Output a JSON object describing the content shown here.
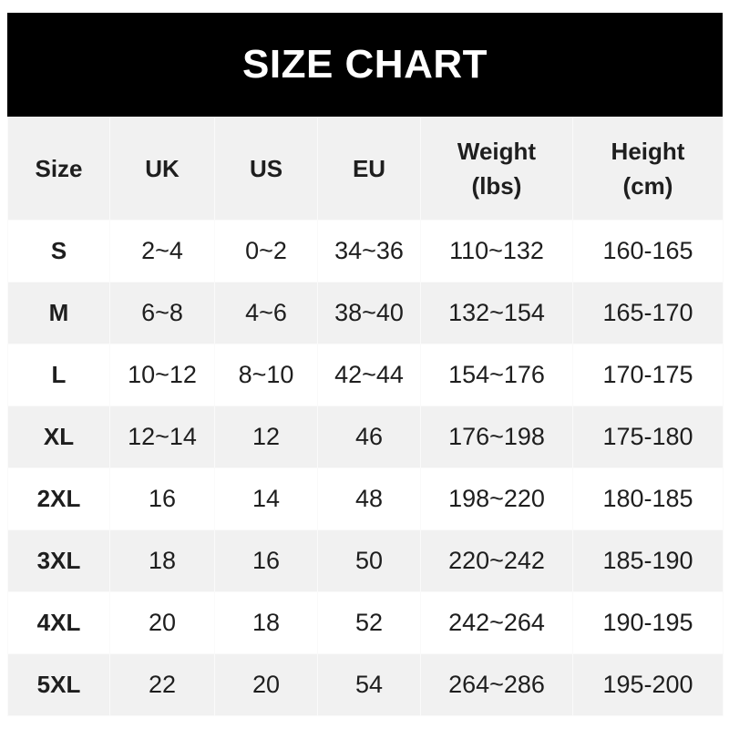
{
  "title": "SIZE CHART",
  "headers": [
    {
      "line1": "Size",
      "line2": ""
    },
    {
      "line1": "UK",
      "line2": ""
    },
    {
      "line1": "US",
      "line2": ""
    },
    {
      "line1": "EU",
      "line2": ""
    },
    {
      "line1": "Weight",
      "line2": "(lbs)"
    },
    {
      "line1": "Height",
      "line2": "(cm)"
    }
  ],
  "rows": [
    [
      "S",
      "2~4",
      "0~2",
      "34~36",
      "110~132",
      "160-165"
    ],
    [
      "M",
      "6~8",
      "4~6",
      "38~40",
      "132~154",
      "165-170"
    ],
    [
      "L",
      "10~12",
      "8~10",
      "42~44",
      "154~176",
      "170-175"
    ],
    [
      "XL",
      "12~14",
      "12",
      "46",
      "176~198",
      "175-180"
    ],
    [
      "2XL",
      "16",
      "14",
      "48",
      "198~220",
      "180-185"
    ],
    [
      "3XL",
      "18",
      "16",
      "50",
      "220~242",
      "185-190"
    ],
    [
      "4XL",
      "20",
      "18",
      "52",
      "242~264",
      "190-195"
    ],
    [
      "5XL",
      "22",
      "20",
      "54",
      "264~286",
      "195-200"
    ]
  ],
  "colors": {
    "title_bg": "#000000",
    "title_text": "#ffffff",
    "stripe": "#f1f1f1",
    "text": "#1e1e1e"
  }
}
